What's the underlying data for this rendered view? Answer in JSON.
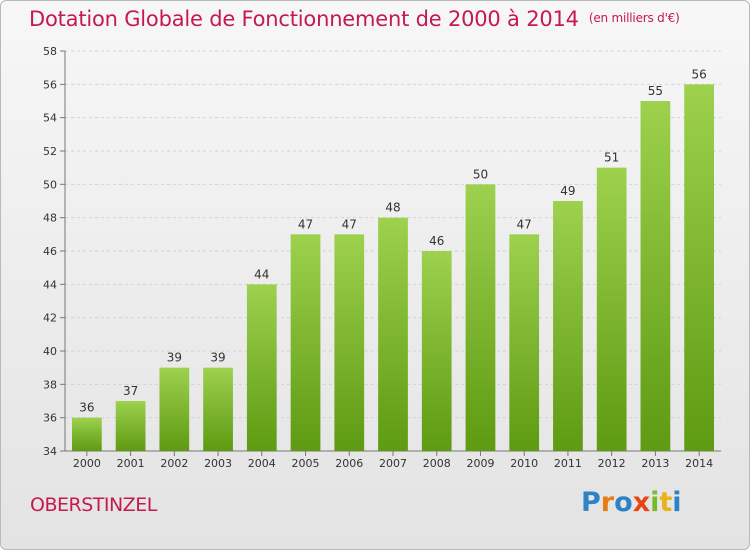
{
  "header": {
    "title": "Dotation Globale de Fonctionnement de 2000 à 2014",
    "subtitle": "(en milliers d'€)"
  },
  "footer": {
    "city": "OBERSTINZEL",
    "logo_text": "Proxiti"
  },
  "colors": {
    "title": "#c41a4e",
    "bar_top": "#9dd14e",
    "bar_bottom": "#5e9a12"
  },
  "chart_data": {
    "type": "bar",
    "categories": [
      "2000",
      "2001",
      "2002",
      "2003",
      "2004",
      "2005",
      "2006",
      "2007",
      "2008",
      "2009",
      "2010",
      "2011",
      "2012",
      "2013",
      "2014"
    ],
    "values": [
      36,
      37,
      39,
      39,
      44,
      47,
      47,
      48,
      46,
      50,
      47,
      49,
      51,
      55,
      56
    ],
    "title": "Dotation Globale de Fonctionnement de 2000 à 2014",
    "subtitle": "(en milliers d'€)",
    "ylim": [
      34,
      58
    ],
    "yticks": [
      34,
      36,
      38,
      40,
      42,
      44,
      46,
      48,
      50,
      52,
      54,
      56,
      58
    ],
    "grid": true,
    "data_labels": true
  }
}
